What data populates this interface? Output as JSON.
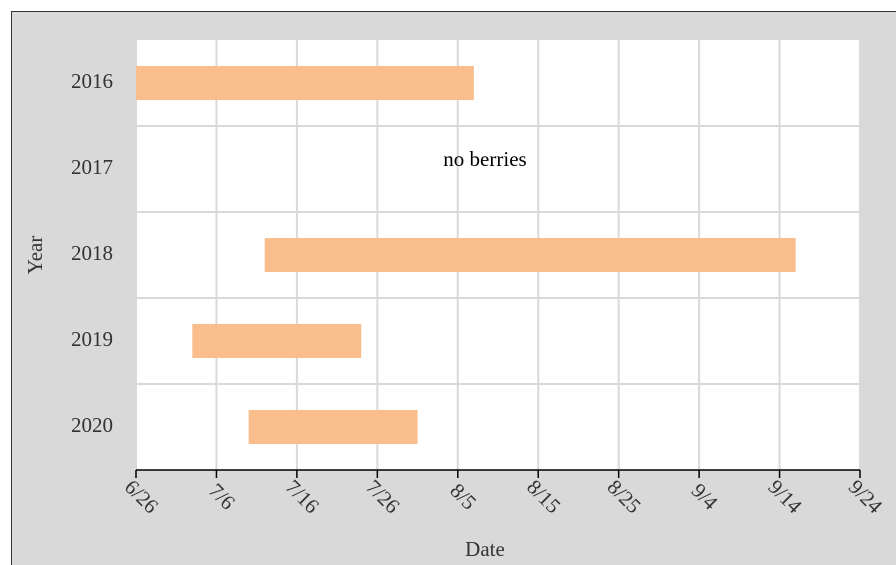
{
  "chart_data": {
    "type": "floating-bar",
    "categories": [
      "2016",
      "2017",
      "2018",
      "2019",
      "2020"
    ],
    "starts": [
      "6/26",
      null,
      "7/12",
      "7/3",
      "7/10"
    ],
    "ends": [
      "8/7",
      null,
      "9/16",
      "7/24",
      "7/31"
    ],
    "color": "#f9be8c",
    "xlabel": "Date",
    "ylabel": "Year",
    "annotation": "no berries",
    "xlim": [
      "6/26",
      "9/24"
    ],
    "xticks": [
      "6/26",
      "7/6",
      "7/16",
      "7/26",
      "8/5",
      "8/15",
      "8/25",
      "9/4",
      "9/14",
      "9/24"
    ],
    "grid": true
  }
}
